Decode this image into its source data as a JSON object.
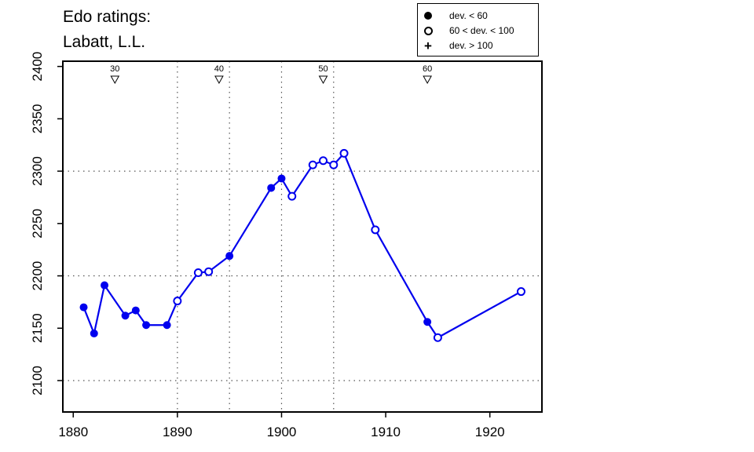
{
  "title_line1": "Edo ratings:",
  "title_line2": "Labatt, L.L.",
  "legend": [
    {
      "symbol": "filled-circle",
      "label": "dev. < 60"
    },
    {
      "symbol": "open-circle",
      "label": "60 < dev. < 100"
    },
    {
      "symbol": "plus",
      "label": "dev. > 100"
    }
  ],
  "colors": {
    "series": "#0000ee",
    "axis": "#000000",
    "grid": "#555555"
  },
  "chart_data": {
    "type": "line",
    "title": "Edo ratings: Labatt, L.L.",
    "xlim": [
      1879,
      1925
    ],
    "ylim": [
      2070,
      2405
    ],
    "x_ticks": [
      1880,
      1890,
      1900,
      1910,
      1920
    ],
    "y_ticks": [
      2100,
      2150,
      2200,
      2250,
      2300,
      2350,
      2400
    ],
    "x_grid": [
      1890,
      1895,
      1900,
      1905
    ],
    "y_grid": [
      2100,
      2200,
      2300
    ],
    "grid": "dotted",
    "legend_position": "top-right",
    "age_markers": [
      {
        "year": 1884,
        "label": "30"
      },
      {
        "year": 1894,
        "label": "40"
      },
      {
        "year": 1904,
        "label": "50"
      },
      {
        "year": 1914,
        "label": "60"
      }
    ],
    "series": [
      {
        "points": [
          {
            "x": 1881,
            "y": 2170,
            "dev": "filled"
          },
          {
            "x": 1882,
            "y": 2145,
            "dev": "filled"
          },
          {
            "x": 1883,
            "y": 2191,
            "dev": "filled"
          },
          {
            "x": 1885,
            "y": 2162,
            "dev": "filled"
          },
          {
            "x": 1886,
            "y": 2167,
            "dev": "filled"
          },
          {
            "x": 1887,
            "y": 2153,
            "dev": "filled"
          },
          {
            "x": 1889,
            "y": 2153,
            "dev": "filled"
          },
          {
            "x": 1890,
            "y": 2176,
            "dev": "open"
          },
          {
            "x": 1892,
            "y": 2203,
            "dev": "open"
          },
          {
            "x": 1893,
            "y": 2204,
            "dev": "open"
          },
          {
            "x": 1895,
            "y": 2219,
            "dev": "filled"
          },
          {
            "x": 1899,
            "y": 2284,
            "dev": "filled"
          },
          {
            "x": 1900,
            "y": 2293,
            "dev": "filled"
          },
          {
            "x": 1901,
            "y": 2276,
            "dev": "open"
          },
          {
            "x": 1903,
            "y": 2306,
            "dev": "open"
          },
          {
            "x": 1904,
            "y": 2310,
            "dev": "open"
          },
          {
            "x": 1905,
            "y": 2306,
            "dev": "open"
          },
          {
            "x": 1906,
            "y": 2317,
            "dev": "open"
          },
          {
            "x": 1909,
            "y": 2244,
            "dev": "open"
          },
          {
            "x": 1914,
            "y": 2156,
            "dev": "filled"
          },
          {
            "x": 1915,
            "y": 2141,
            "dev": "open"
          },
          {
            "x": 1923,
            "y": 2185,
            "dev": "open"
          }
        ]
      }
    ]
  }
}
